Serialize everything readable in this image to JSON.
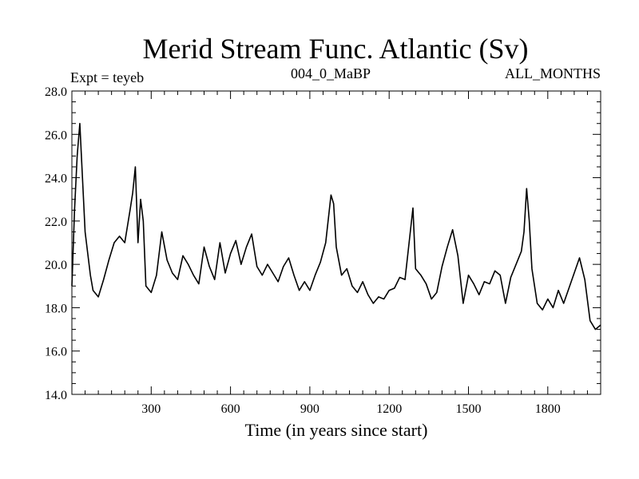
{
  "chart_data": {
    "type": "line",
    "title": "Merid Stream Func. Atlantic (Sv)",
    "subtitle_left": "Expt = teyeb",
    "subtitle_center": "004_0_MaBP",
    "subtitle_right": "ALL_MONTHS",
    "xlabel": "Time (in years since start)",
    "ylabel": "",
    "xlim": [
      0,
      2000
    ],
    "ylim": [
      14.0,
      28.0
    ],
    "xticks": [
      300,
      600,
      900,
      1200,
      1500,
      1800
    ],
    "xtick_labels": [
      "300",
      "600",
      "900",
      "1200",
      "1500",
      "1800"
    ],
    "yticks": [
      14,
      16,
      18,
      20,
      22,
      24,
      26,
      28
    ],
    "ytick_labels": [
      "14.0",
      "16.0",
      "18.0",
      "20.0",
      "22.0",
      "24.0",
      "26.0",
      "28.0"
    ],
    "grid": false,
    "series": [
      {
        "name": "Merid Stream Func. Atlantic",
        "color": "#000000",
        "x": [
          0,
          10,
          20,
          30,
          40,
          50,
          60,
          70,
          80,
          100,
          120,
          140,
          160,
          180,
          200,
          220,
          230,
          240,
          250,
          260,
          270,
          280,
          300,
          320,
          340,
          360,
          380,
          400,
          420,
          440,
          460,
          480,
          500,
          520,
          540,
          560,
          580,
          600,
          620,
          640,
          660,
          680,
          700,
          720,
          740,
          760,
          780,
          800,
          820,
          840,
          860,
          880,
          900,
          920,
          940,
          960,
          980,
          990,
          1000,
          1020,
          1040,
          1060,
          1080,
          1100,
          1120,
          1140,
          1160,
          1180,
          1200,
          1220,
          1240,
          1260,
          1280,
          1290,
          1300,
          1320,
          1340,
          1360,
          1380,
          1400,
          1420,
          1440,
          1460,
          1480,
          1500,
          1520,
          1540,
          1560,
          1580,
          1600,
          1620,
          1640,
          1660,
          1680,
          1700,
          1710,
          1720,
          1730,
          1740,
          1760,
          1780,
          1800,
          1820,
          1840,
          1860,
          1880,
          1900,
          1920,
          1940,
          1960,
          1980,
          2000
        ],
        "values": [
          19.0,
          22.5,
          25.0,
          26.5,
          24.0,
          21.5,
          20.5,
          19.5,
          18.8,
          18.5,
          19.3,
          20.2,
          21.0,
          21.3,
          21.0,
          22.5,
          23.3,
          24.5,
          21.0,
          23.0,
          22.0,
          19.0,
          18.7,
          19.5,
          21.5,
          20.2,
          19.6,
          19.3,
          20.4,
          20.0,
          19.5,
          19.1,
          20.8,
          19.9,
          19.3,
          21.0,
          19.6,
          20.5,
          21.1,
          20.0,
          20.8,
          21.4,
          19.9,
          19.5,
          20.0,
          19.6,
          19.2,
          19.9,
          20.3,
          19.5,
          18.8,
          19.2,
          18.8,
          19.5,
          20.1,
          21.0,
          23.2,
          22.8,
          20.8,
          19.5,
          19.8,
          19.0,
          18.7,
          19.2,
          18.6,
          18.2,
          18.5,
          18.4,
          18.8,
          18.9,
          19.4,
          19.3,
          21.5,
          22.6,
          19.8,
          19.5,
          19.1,
          18.4,
          18.7,
          19.9,
          20.8,
          21.6,
          20.4,
          18.2,
          19.5,
          19.1,
          18.6,
          19.2,
          19.1,
          19.7,
          19.5,
          18.2,
          19.4,
          20.0,
          20.6,
          21.5,
          23.5,
          22.0,
          19.8,
          18.2,
          17.9,
          18.4,
          18.0,
          18.8,
          18.2,
          18.9,
          19.6,
          20.3,
          19.3,
          17.4,
          17.0,
          17.2
        ]
      }
    ]
  }
}
